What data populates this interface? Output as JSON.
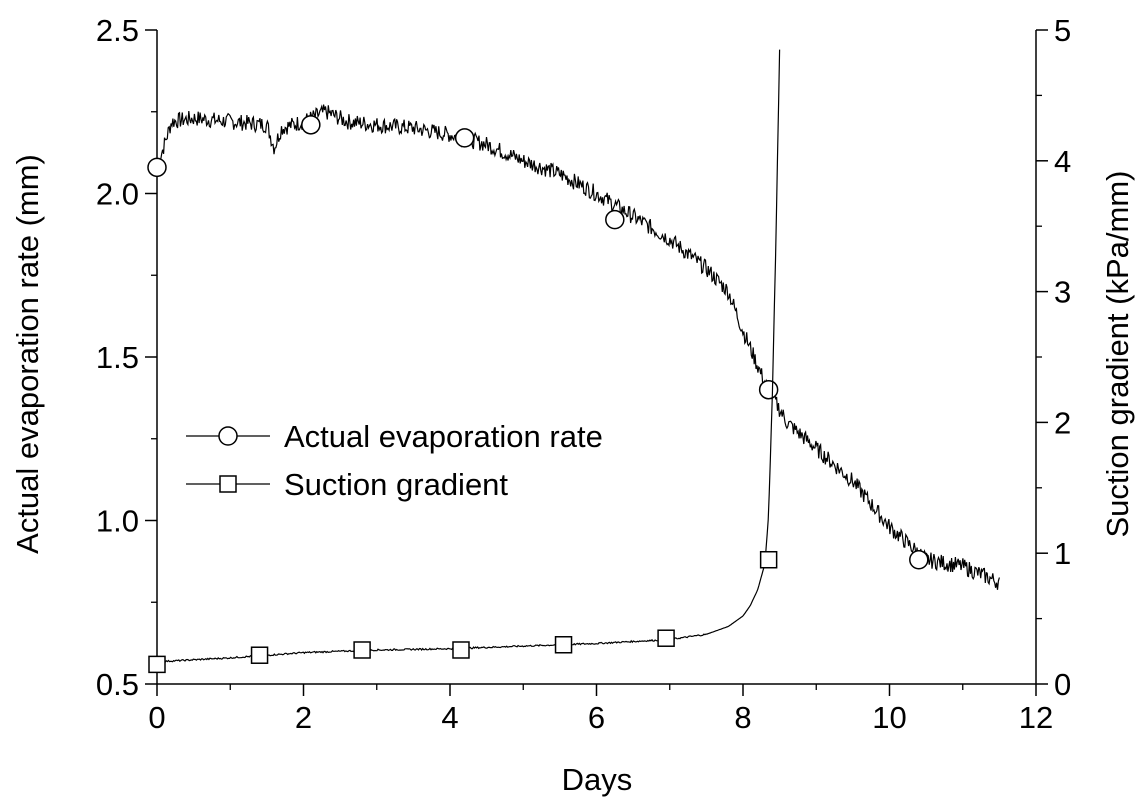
{
  "chart_data": {
    "type": "line",
    "xlabel": "Days",
    "ylabel_left": "Actual evaporation rate (mm)",
    "ylabel_right": "Suction gradient (kPa/mm)",
    "xlim": [
      0,
      12
    ],
    "ylim_left": [
      0.5,
      2.5
    ],
    "ylim_right": [
      0,
      5
    ],
    "x_ticks": [
      0,
      2,
      4,
      6,
      8,
      10,
      12
    ],
    "y_left_ticks": [
      0.5,
      1.0,
      1.5,
      2.0,
      2.5
    ],
    "y_right_ticks": [
      0,
      1,
      2,
      3,
      4,
      5
    ],
    "x_tick_labels": [
      "0",
      "2",
      "4",
      "6",
      "8",
      "10",
      "12"
    ],
    "y_left_tick_labels": [
      "0.5",
      "1.0",
      "1.5",
      "2.0",
      "2.5"
    ],
    "y_right_tick_labels": [
      "0",
      "1",
      "2",
      "3",
      "4",
      "5"
    ],
    "grid": false,
    "legend_position": "middle-left",
    "series": [
      {
        "name": "Actual evaporation rate",
        "axis": "left",
        "marker": "circle",
        "x": [
          0,
          0.2,
          0.5,
          1.0,
          1.5,
          1.6,
          1.7,
          2.0,
          2.3,
          2.6,
          3.0,
          3.5,
          4.0,
          4.5,
          5.0,
          5.5,
          6.0,
          6.5,
          7.0,
          7.5,
          7.8,
          8.0,
          8.3,
          8.6,
          9.0,
          9.5,
          10.0,
          10.5,
          11.0,
          11.5
        ],
        "y": [
          2.08,
          2.22,
          2.23,
          2.22,
          2.21,
          2.14,
          2.2,
          2.22,
          2.25,
          2.22,
          2.21,
          2.2,
          2.18,
          2.15,
          2.1,
          2.06,
          2.0,
          1.93,
          1.86,
          1.77,
          1.7,
          1.58,
          1.42,
          1.3,
          1.22,
          1.12,
          0.98,
          0.88,
          0.86,
          0.81
        ],
        "marker_x": [
          0,
          2.1,
          4.2,
          6.25,
          8.35,
          10.4
        ],
        "marker_y": [
          2.08,
          2.21,
          2.17,
          1.92,
          1.4,
          0.88
        ]
      },
      {
        "name": "Suction gradient",
        "axis": "right",
        "marker": "square",
        "x": [
          0,
          1,
          2,
          3,
          4,
          5,
          6,
          7,
          7.5,
          7.8,
          8.0,
          8.1,
          8.2,
          8.3,
          8.35,
          8.4,
          8.45,
          8.5
        ],
        "y": [
          0.17,
          0.2,
          0.24,
          0.26,
          0.27,
          0.29,
          0.31,
          0.34,
          0.38,
          0.44,
          0.52,
          0.6,
          0.72,
          0.92,
          1.3,
          2.2,
          3.4,
          4.85
        ],
        "marker_x": [
          0,
          1.4,
          2.8,
          4.15,
          5.55,
          6.95,
          8.35
        ],
        "marker_y": [
          0.15,
          0.22,
          0.26,
          0.26,
          0.3,
          0.35,
          0.95
        ]
      }
    ]
  }
}
